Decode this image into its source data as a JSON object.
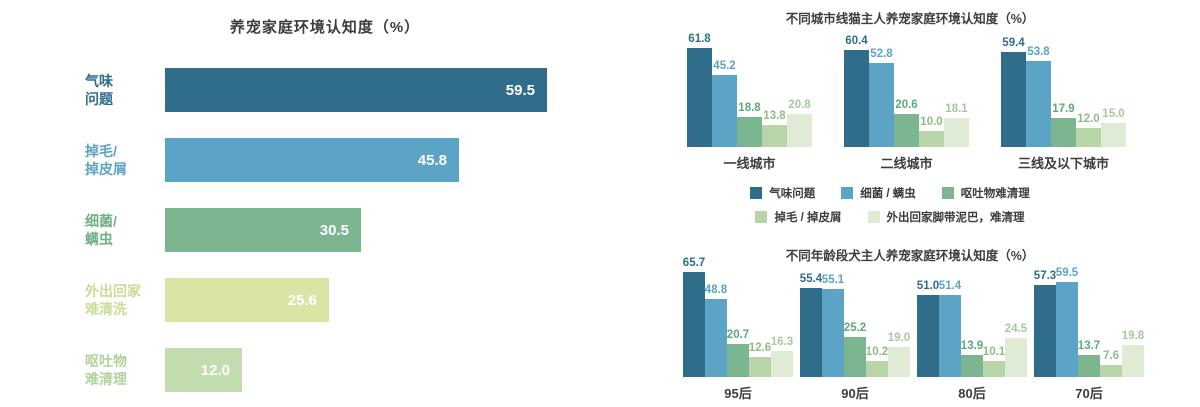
{
  "palette": {
    "series_colors": [
      "#2f6d8a",
      "#5ba4c6",
      "#7bb691",
      "#b7d5a6",
      "#e0ebd6"
    ],
    "value_label_colors": [
      "#2f6d8a",
      "#5ba4c6",
      "#5fa878",
      "#8fbc86",
      "#a6c7a0"
    ],
    "title_text": "#3d3d3d"
  },
  "chart_data": [
    {
      "id": "overall",
      "type": "bar",
      "orientation": "horizontal",
      "title": "养宠家庭环境认知度（%）",
      "categories": [
        "气味问题",
        "掉毛/掉皮屑",
        "细菌/螨虫",
        "外出回家难清洗",
        "呕吐物难清理"
      ],
      "categories_lines": [
        [
          "气味",
          "问题"
        ],
        [
          "掉毛/",
          "掉皮屑"
        ],
        [
          "细菌/",
          "螨虫"
        ],
        [
          "外出回家",
          "难清洗"
        ],
        [
          "呕吐物",
          "难清理"
        ]
      ],
      "values": [
        59.5,
        45.8,
        30.5,
        25.6,
        12.0
      ],
      "bar_colors": [
        "#2f6d8a",
        "#5ba4c6",
        "#7bb691",
        "#d8e5a4",
        "#c3dcae"
      ],
      "label_colors": [
        "#2f6d8a",
        "#5ba4c6",
        "#6fb086",
        "#c8dd96",
        "#b2d29e"
      ],
      "xlim": [
        0,
        62
      ],
      "grid": false,
      "value_labels": "inside-end, white"
    },
    {
      "id": "city",
      "type": "bar",
      "orientation": "vertical-grouped",
      "title": "不同城市线猫主人养宠家庭环境认知度（%）",
      "categories": [
        "一线城市",
        "二线城市",
        "三线及以下城市"
      ],
      "series": [
        {
          "name": "气味问题",
          "values": [
            61.8,
            60.4,
            59.4
          ]
        },
        {
          "name": "细菌 / 螨虫",
          "values": [
            45.2,
            52.8,
            53.8
          ]
        },
        {
          "name": "呕吐物难清理",
          "values": [
            18.8,
            20.6,
            17.9
          ]
        },
        {
          "name": "掉毛 / 掉皮屑",
          "values": [
            13.8,
            10.0,
            12.0
          ]
        },
        {
          "name": "外出回家脚带泥巴，难清理",
          "values": [
            20.8,
            18.1,
            15.0
          ]
        }
      ],
      "ylim": [
        0,
        70
      ],
      "grid": false,
      "value_labels": "above bars, series-colored"
    },
    {
      "id": "age",
      "type": "bar",
      "orientation": "vertical-grouped",
      "title": "不同年龄段犬主人养宠家庭环境认知度（%）",
      "categories": [
        "95后",
        "90后",
        "80后",
        "70后"
      ],
      "series": [
        {
          "name": "气味问题",
          "values": [
            65.7,
            55.4,
            51.0,
            57.3
          ]
        },
        {
          "name": "细菌 / 螨虫",
          "values": [
            48.8,
            55.1,
            51.4,
            59.5
          ]
        },
        {
          "name": "呕吐物难清理",
          "values": [
            20.7,
            25.2,
            13.9,
            13.7
          ]
        },
        {
          "name": "掉毛 / 掉皮屑",
          "values": [
            12.6,
            10.2,
            10.1,
            7.6
          ]
        },
        {
          "name": "外出回家脚带泥巴，难清理",
          "values": [
            16.3,
            19.0,
            24.5,
            19.8
          ]
        }
      ],
      "ylim": [
        0,
        70
      ],
      "grid": false,
      "value_labels": "above bars, series-colored"
    }
  ],
  "legend": {
    "position": "between right charts, two centered rows",
    "rows": [
      [
        {
          "label": "气味问题",
          "color": "#2f6d8a"
        },
        {
          "label": "细菌 / 螨虫",
          "color": "#5ba4c6"
        },
        {
          "label": "呕吐物难清理",
          "color": "#7bb691"
        }
      ],
      [
        {
          "label": "掉毛 / 掉皮屑",
          "color": "#b7d5a6"
        },
        {
          "label": "外出回家脚带泥巴，难清理",
          "color": "#e0ebd6"
        }
      ]
    ]
  }
}
